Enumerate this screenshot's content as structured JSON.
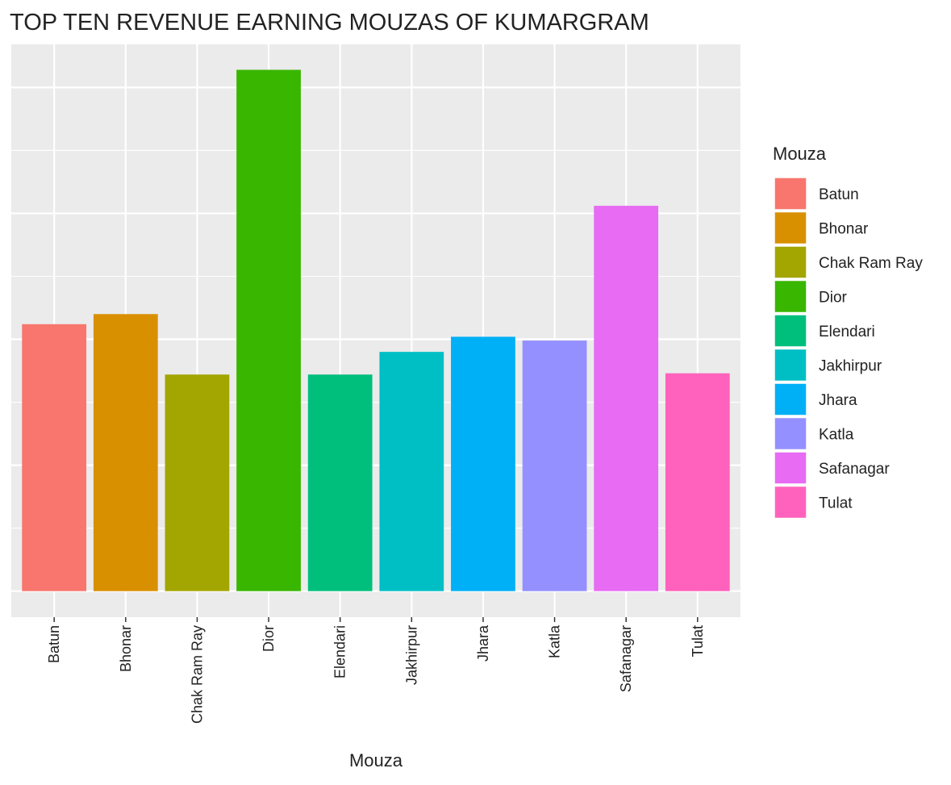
{
  "chart_data": {
    "type": "bar",
    "title": "TOP TEN REVENUE EARNING MOUZAS OF KUMARGRAM",
    "x_label": "Mouza",
    "legend_title": "Mouza",
    "categories": [
      "Batun",
      "Bhonar",
      "Chak Ram Ray",
      "Dior",
      "Elendari",
      "Jakhirpur",
      "Jhara",
      "Katla",
      "Safanagar",
      "Tulat"
    ],
    "values": [
      2.12,
      2.2,
      1.72,
      4.14,
      1.72,
      1.9,
      2.02,
      1.99,
      3.06,
      1.73
    ],
    "colors": [
      "#F8766D",
      "#D89000",
      "#A3A500",
      "#39B600",
      "#00BF7D",
      "#00BFC4",
      "#00B0F6",
      "#9590FF",
      "#E76BF3",
      "#FF62BC"
    ],
    "ylim": [
      -0.207,
      4.342
    ],
    "yticks": [
      0,
      0.5,
      1,
      1.5,
      2,
      2.5,
      3,
      3.5,
      4
    ],
    "grid": true,
    "legend": "right"
  }
}
